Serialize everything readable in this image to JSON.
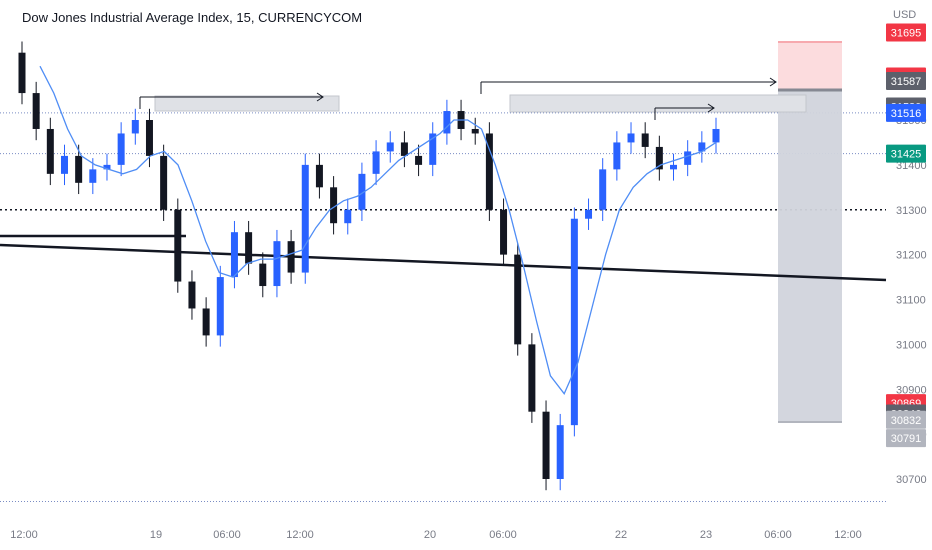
{
  "title": "Dow Jones Industrial Average Index, 15, CURRENCYCOM",
  "currency": "USD",
  "chart_data": {
    "type": "candlestick",
    "x_tick_labels": [
      "12:00",
      "19",
      "06:00",
      "12:00",
      "20",
      "06:00",
      "22",
      "23",
      "06:00",
      "12:00"
    ],
    "y_ticks": [
      30700,
      30800,
      30900,
      31000,
      31100,
      31200,
      31300,
      31400,
      31500
    ],
    "ylim": [
      30600,
      31720
    ],
    "price_tags": [
      {
        "label": "31695",
        "value": 31695,
        "color": "#f23645"
      },
      {
        "label": "31597",
        "value": 31597,
        "color": "#f23645"
      },
      {
        "label": "31587",
        "value": 31587,
        "color": "#5d606b"
      },
      {
        "label": "31530",
        "value": 31530,
        "color": "#5d606b"
      },
      {
        "label": "31516",
        "value": 31516,
        "color": "#2962ff"
      },
      {
        "label": "31425",
        "value": 31425,
        "color": "#089981"
      },
      {
        "label": "30869",
        "value": 30869,
        "color": "#f23645"
      },
      {
        "label": "30846",
        "value": 30846,
        "color": "#5d606b"
      },
      {
        "label": "30832",
        "value": 30832,
        "color": "#b2b5be"
      },
      {
        "label": "30791",
        "value": 30791,
        "color": "#b2b5be"
      }
    ],
    "series": [
      {
        "name": "",
        "type": "candles",
        "close": [
          31560,
          31480,
          31380,
          31420,
          31360,
          31390,
          31400,
          31470,
          31500,
          31420,
          31300,
          31140,
          31080,
          31020,
          31150,
          31250,
          31180,
          31130,
          31230,
          31160,
          31400,
          31350,
          31270,
          31300,
          31380,
          31430,
          31450,
          31420,
          31400,
          31470,
          31520,
          31480,
          31470,
          31300,
          31200,
          31000,
          30850,
          30700,
          30820,
          31280,
          31300,
          31390,
          31450,
          31470,
          31440,
          31390,
          31400,
          31430,
          31450,
          31480
        ]
      },
      {
        "name": "",
        "type": "moving_average",
        "values": [
          31620,
          31560,
          31480,
          31420,
          31400,
          31390,
          31380,
          31390,
          31420,
          31430,
          31400,
          31320,
          31230,
          31160,
          31150,
          31180,
          31190,
          31190,
          31200,
          31210,
          31260,
          31300,
          31320,
          31330,
          31350,
          31380,
          31410,
          31430,
          31450,
          31470,
          31500,
          31500,
          31480,
          31400,
          31300,
          31180,
          31050,
          30930,
          30890,
          30960,
          31080,
          31200,
          31300,
          31350,
          31380,
          31400,
          31410,
          31420,
          31430,
          31450
        ]
      }
    ],
    "grid": "dotted horizontal price levels",
    "legend": "none"
  }
}
